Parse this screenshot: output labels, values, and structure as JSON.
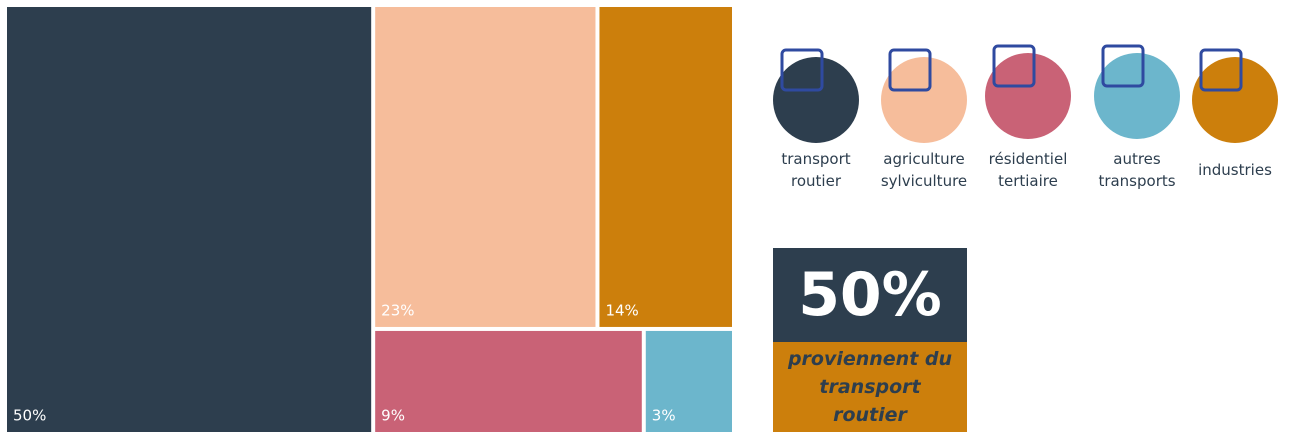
{
  "chart_data": {
    "type": "treemap",
    "categories": [
      "transport routier",
      "agriculture sylviculture",
      "résidentiel tertiaire",
      "autres transports",
      "industries"
    ],
    "values": [
      50,
      23,
      9,
      3,
      14
    ],
    "value_labels": [
      "50%",
      "23%",
      "9%",
      "3%",
      "14%"
    ],
    "colors": [
      "#2d3e4e",
      "#f6bd9b",
      "#c96276",
      "#6cb6cc",
      "#cc7f0c"
    ]
  },
  "callout": {
    "figure": "50%",
    "text": "proviennent du transport routier"
  }
}
